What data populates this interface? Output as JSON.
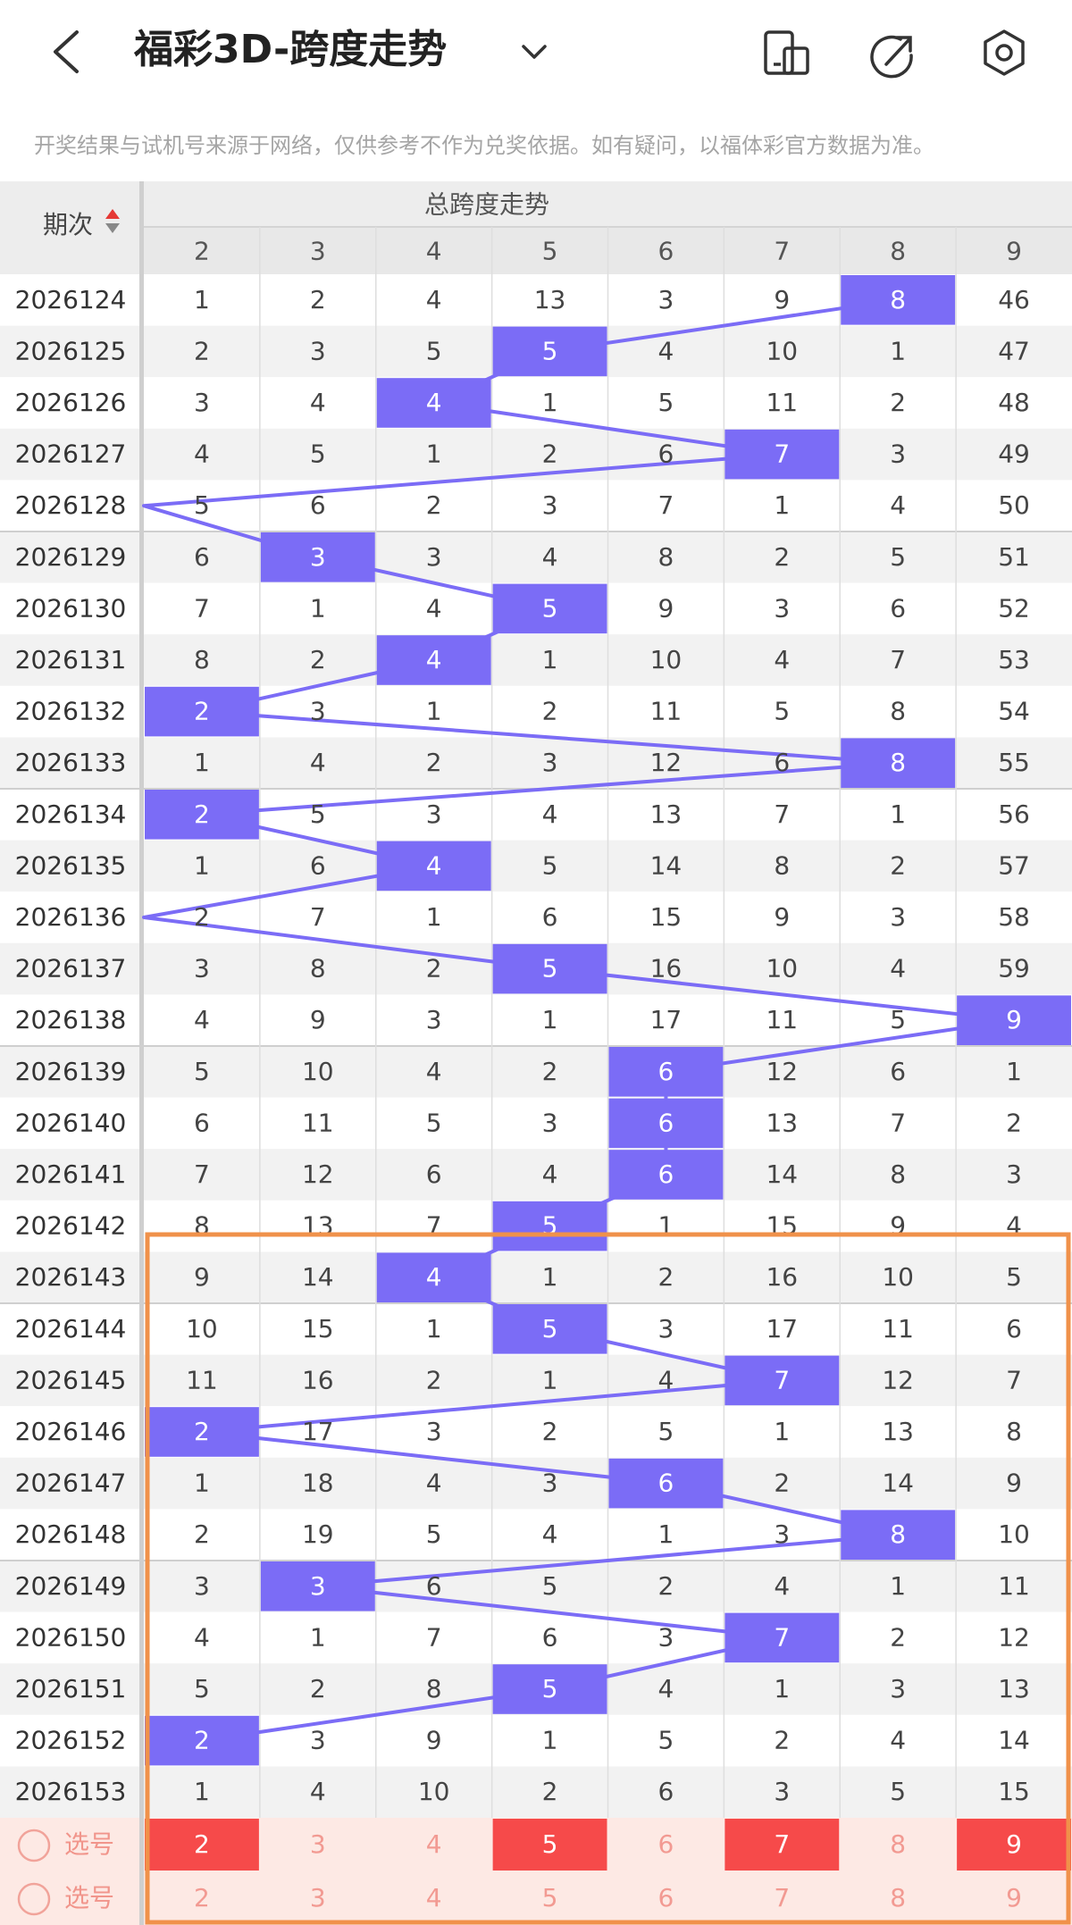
{
  "header": {
    "title": "福彩3D-跨度走势"
  },
  "notice": "开奖结果与试机号来源于网络，仅供参考不作为兑奖依据。如有疑问，以福体彩官方数据为准。",
  "table": {
    "period_header": "期次",
    "group_header": "总跨度走势",
    "columns": [
      "2",
      "3",
      "4",
      "5",
      "6",
      "7",
      "8",
      "9"
    ],
    "rows": [
      {
        "period": "2026124",
        "cells": [
          1,
          2,
          4,
          13,
          3,
          9,
          8,
          46
        ],
        "hit": 6
      },
      {
        "period": "2026125",
        "cells": [
          2,
          3,
          5,
          5,
          4,
          10,
          1,
          47
        ],
        "hit": 3
      },
      {
        "period": "2026126",
        "cells": [
          3,
          4,
          4,
          1,
          5,
          11,
          2,
          48
        ],
        "hit": 2
      },
      {
        "period": "2026127",
        "cells": [
          4,
          5,
          1,
          2,
          6,
          7,
          3,
          49
        ],
        "hit": 5
      },
      {
        "period": "2026128",
        "cells": [
          5,
          6,
          2,
          3,
          7,
          1,
          4,
          50
        ],
        "hit": null
      },
      {
        "period": "2026129",
        "cells": [
          6,
          3,
          3,
          4,
          8,
          2,
          5,
          51
        ],
        "hit": 1
      },
      {
        "period": "2026130",
        "cells": [
          7,
          1,
          4,
          5,
          9,
          3,
          6,
          52
        ],
        "hit": 3
      },
      {
        "period": "2026131",
        "cells": [
          8,
          2,
          4,
          1,
          10,
          4,
          7,
          53
        ],
        "hit": 2
      },
      {
        "period": "2026132",
        "cells": [
          2,
          3,
          1,
          2,
          11,
          5,
          8,
          54
        ],
        "hit": 0
      },
      {
        "period": "2026133",
        "cells": [
          1,
          4,
          2,
          3,
          12,
          6,
          8,
          55
        ],
        "hit": 6
      },
      {
        "period": "2026134",
        "cells": [
          2,
          5,
          3,
          4,
          13,
          7,
          1,
          56
        ],
        "hit": 0
      },
      {
        "period": "2026135",
        "cells": [
          1,
          6,
          4,
          5,
          14,
          8,
          2,
          57
        ],
        "hit": 2
      },
      {
        "period": "2026136",
        "cells": [
          2,
          7,
          1,
          6,
          15,
          9,
          3,
          58
        ],
        "hit": null
      },
      {
        "period": "2026137",
        "cells": [
          3,
          8,
          2,
          5,
          16,
          10,
          4,
          59
        ],
        "hit": 3
      },
      {
        "period": "2026138",
        "cells": [
          4,
          9,
          3,
          1,
          17,
          11,
          5,
          9
        ],
        "hit": 7
      },
      {
        "period": "2026139",
        "cells": [
          5,
          10,
          4,
          2,
          6,
          12,
          6,
          1
        ],
        "hit": 4
      },
      {
        "period": "2026140",
        "cells": [
          6,
          11,
          5,
          3,
          6,
          13,
          7,
          2
        ],
        "hit": 4
      },
      {
        "period": "2026141",
        "cells": [
          7,
          12,
          6,
          4,
          6,
          14,
          8,
          3
        ],
        "hit": 4
      },
      {
        "period": "2026142",
        "cells": [
          8,
          13,
          7,
          5,
          1,
          15,
          9,
          4
        ],
        "hit": 3
      },
      {
        "period": "2026143",
        "cells": [
          9,
          14,
          4,
          1,
          2,
          16,
          10,
          5
        ],
        "hit": 2
      },
      {
        "period": "2026144",
        "cells": [
          10,
          15,
          1,
          5,
          3,
          17,
          11,
          6
        ],
        "hit": 3
      },
      {
        "period": "2026145",
        "cells": [
          11,
          16,
          2,
          1,
          4,
          7,
          12,
          7
        ],
        "hit": 5
      },
      {
        "period": "2026146",
        "cells": [
          2,
          17,
          3,
          2,
          5,
          1,
          13,
          8
        ],
        "hit": 0
      },
      {
        "period": "2026147",
        "cells": [
          1,
          18,
          4,
          3,
          6,
          2,
          14,
          9
        ],
        "hit": 4
      },
      {
        "period": "2026148",
        "cells": [
          2,
          19,
          5,
          4,
          1,
          3,
          8,
          10
        ],
        "hit": 6
      },
      {
        "period": "2026149",
        "cells": [
          3,
          3,
          6,
          5,
          2,
          4,
          1,
          11
        ],
        "hit": 1
      },
      {
        "period": "2026150",
        "cells": [
          4,
          1,
          7,
          6,
          3,
          7,
          2,
          12
        ],
        "hit": 5
      },
      {
        "period": "2026151",
        "cells": [
          5,
          2,
          8,
          5,
          4,
          1,
          3,
          13
        ],
        "hit": 3
      },
      {
        "period": "2026152",
        "cells": [
          2,
          3,
          9,
          1,
          5,
          2,
          4,
          14
        ],
        "hit": 0
      },
      {
        "period": "2026153",
        "cells": [
          1,
          4,
          10,
          2,
          6,
          3,
          5,
          15
        ],
        "hit": null
      }
    ],
    "picker": {
      "label": "选号",
      "rows": [
        {
          "values": [
            2,
            3,
            4,
            5,
            6,
            7,
            8,
            9
          ],
          "selected": [
            true,
            false,
            false,
            true,
            false,
            true,
            false,
            true
          ]
        },
        {
          "values": [
            2,
            3,
            4,
            5,
            6,
            7,
            8,
            9
          ],
          "selected": [
            false,
            false,
            false,
            false,
            false,
            false,
            false,
            false
          ]
        }
      ]
    }
  }
}
